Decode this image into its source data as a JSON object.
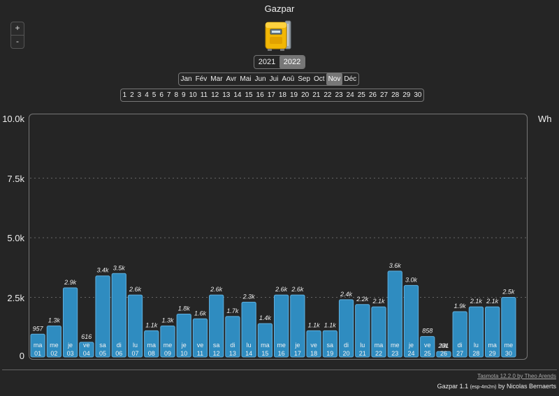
{
  "header": {
    "title": "Gazpar"
  },
  "zoom": {
    "plus": "+",
    "minus": "-"
  },
  "years": {
    "items": [
      "2021",
      "2022"
    ],
    "selected": 1
  },
  "months": {
    "items": [
      "Jan",
      "Fév",
      "Mar",
      "Avr",
      "Mai",
      "Jun",
      "Jui",
      "Aoû",
      "Sep",
      "Oct",
      "Nov",
      "Déc"
    ],
    "selected": 10
  },
  "days": {
    "items": [
      "1",
      "2",
      "3",
      "4",
      "5",
      "6",
      "7",
      "8",
      "9",
      "10",
      "11",
      "12",
      "13",
      "14",
      "15",
      "16",
      "17",
      "18",
      "19",
      "20",
      "21",
      "22",
      "23",
      "24",
      "25",
      "26",
      "27",
      "28",
      "29",
      "30"
    ]
  },
  "colors": {
    "bar": "#2f8cc0",
    "bar_border": "#5fb0e0",
    "background": "#252525"
  },
  "chart_data": {
    "type": "bar",
    "unit": "Wh",
    "ylim": [
      0,
      10000
    ],
    "yticks": [
      "0",
      "2.5k",
      "5.0k",
      "7.5k",
      "10.0k"
    ],
    "grid": true,
    "categories": [
      [
        "ma",
        "01"
      ],
      [
        "me",
        "02"
      ],
      [
        "je",
        "03"
      ],
      [
        "ve",
        "04"
      ],
      [
        "sa",
        "05"
      ],
      [
        "di",
        "06"
      ],
      [
        "lu",
        "07"
      ],
      [
        "ma",
        "08"
      ],
      [
        "me",
        "09"
      ],
      [
        "je",
        "10"
      ],
      [
        "ve",
        "11"
      ],
      [
        "sa",
        "12"
      ],
      [
        "di",
        "13"
      ],
      [
        "lu",
        "14"
      ],
      [
        "ma",
        "15"
      ],
      [
        "me",
        "16"
      ],
      [
        "je",
        "17"
      ],
      [
        "ve",
        "18"
      ],
      [
        "sa",
        "19"
      ],
      [
        "di",
        "20"
      ],
      [
        "lu",
        "21"
      ],
      [
        "ma",
        "22"
      ],
      [
        "me",
        "23"
      ],
      [
        "je",
        "24"
      ],
      [
        "ve",
        "25"
      ],
      [
        "sa",
        "26"
      ],
      [
        "di",
        "27"
      ],
      [
        "lu",
        "28"
      ],
      [
        "ma",
        "29"
      ],
      [
        "me",
        "30"
      ]
    ],
    "values": [
      957,
      1300,
      2900,
      616,
      3400,
      3500,
      2600,
      1100,
      1300,
      1800,
      1600,
      2600,
      1700,
      2300,
      1400,
      2600,
      2600,
      1100,
      1100,
      2400,
      2200,
      2100,
      3600,
      3000,
      858,
      231,
      1900,
      2100,
      2100,
      2500
    ],
    "labels": [
      "957",
      "1.3k",
      "2.9k",
      "616",
      "3.4k",
      "3.5k",
      "2.6k",
      "1.1k",
      "1.3k",
      "1.8k",
      "1.6k",
      "2.6k",
      "1.7k",
      "2.3k",
      "1.4k",
      "2.6k",
      "2.6k",
      "1.1k",
      "1.1k",
      "2.4k",
      "2.2k",
      "2.1k",
      "3.6k",
      "3.0k",
      "858",
      "231",
      "1.9k",
      "2.1k",
      "2.1k",
      "2.5k"
    ]
  },
  "footer": {
    "tasmota": "Tasmota 12.2.0 by Theo Arends",
    "gazpar": "Gazpar 1.1",
    "build": "(esp-4m2m)",
    "author": "by Nicolas Bernaerts"
  }
}
